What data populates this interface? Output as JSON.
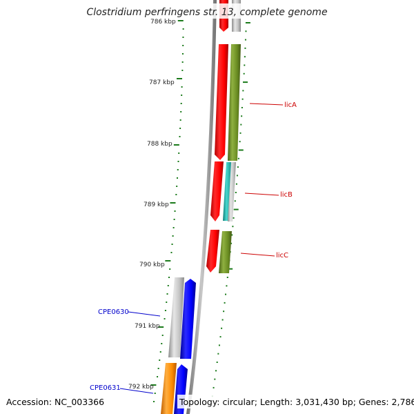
{
  "title": "Clostridium perfringens str. 13, complete genome",
  "footer": {
    "accession": "Accession: NC_003366",
    "topology": "Topology: circular; Length: 3,031,430 bp; Genes: 2,786"
  },
  "scale": {
    "partial_top_label": "786 kbp",
    "major_labels": [
      "787 kbp",
      "788 kbp",
      "789 kbp",
      "790 kbp",
      "791 kbp",
      "792 kbp"
    ]
  },
  "gene_labels": [
    {
      "name": "licA",
      "color": "#cc0000"
    },
    {
      "name": "licB",
      "color": "#cc0000"
    },
    {
      "name": "licC",
      "color": "#cc0000"
    },
    {
      "name": "CPE0630",
      "color": "#0000cc"
    },
    {
      "name": "CPE0631",
      "color": "#0000cc"
    }
  ],
  "colors": {
    "forward_cds": "#ff0000",
    "reverse_cds": "#0000ff",
    "gene_olive": "#6b8e23",
    "gene_cyan": "#20b2aa",
    "gene_gray": "#bdbdbd",
    "gene_orange": "#ff8c00",
    "backbone": "#8a8a8a",
    "tick": "#1a7a1a"
  }
}
